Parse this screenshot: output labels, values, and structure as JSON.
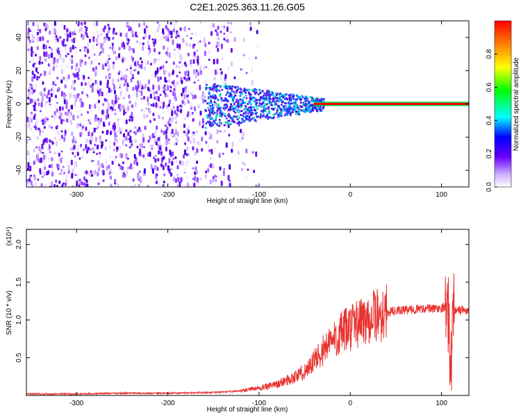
{
  "title": "C2E1.2025.363.11.26.G05",
  "colors": {
    "signal": "#e8332f",
    "frame": "#000000",
    "ridge": "#ff0000"
  },
  "chart_data": [
    {
      "type": "heatmap",
      "xlabel": "Height of straight line (km)",
      "ylabel": "Frequency (Hz)",
      "xlim": [
        -355,
        130
      ],
      "ylim": [
        -50,
        50
      ],
      "xticks": [
        -300,
        -200,
        -100,
        0,
        100
      ],
      "yticks": [
        -40,
        -20,
        0,
        20,
        40
      ],
      "colorbar": {
        "label": "Normalized spectral amplitude",
        "range": [
          0,
          1
        ],
        "ticks": [
          0.0,
          0.2,
          0.4,
          0.6,
          0.8
        ]
      },
      "description_ridge": {
        "x_start": -40,
        "x_end": 130,
        "freq": 0
      }
    },
    {
      "type": "line",
      "xlabel": "Height of straight line (km)",
      "ylabel": "SNR (10 * v/v)",
      "scale_label": "(x10⁴)",
      "xlim": [
        -355,
        130
      ],
      "ylim": [
        0,
        2.2
      ],
      "xticks": [
        -300,
        -200,
        -100,
        0,
        100
      ],
      "yticks": [
        0.5,
        1.0,
        1.5,
        2.0
      ],
      "series": [
        {
          "name": "SNR",
          "x": [
            -355,
            -300,
            -250,
            -200,
            -150,
            -120,
            -100,
            -90,
            -80,
            -70,
            -60,
            -50,
            -40,
            -30,
            -20,
            -10,
            0,
            10,
            20,
            30,
            40,
            50,
            60,
            70,
            80,
            90,
            100,
            105,
            108,
            110,
            112,
            115,
            120,
            130
          ],
          "y": [
            0.02,
            0.02,
            0.03,
            0.03,
            0.04,
            0.06,
            0.1,
            0.12,
            0.15,
            0.2,
            0.25,
            0.32,
            0.45,
            0.6,
            0.72,
            0.82,
            0.9,
            0.98,
            1.03,
            1.06,
            1.1,
            1.12,
            1.13,
            1.14,
            1.15,
            1.15,
            1.16,
            1.18,
            1.0,
            0.2,
            1.1,
            1.14,
            1.13,
            1.12
          ]
        }
      ]
    }
  ]
}
